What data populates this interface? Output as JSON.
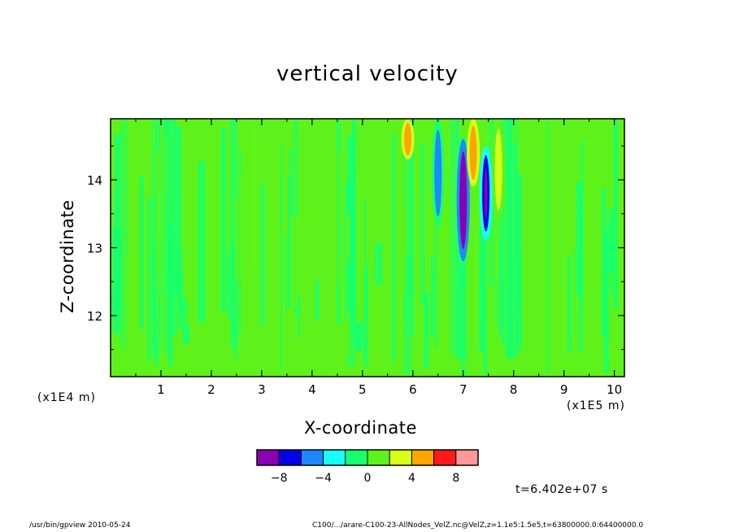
{
  "chart_data": {
    "type": "heatmap",
    "title": "vertical velocity",
    "xlabel": "X-coordinate",
    "ylabel": "Z-coordinate",
    "x_unit": "(x1E5 m)",
    "y_unit": "(x1E4 m)",
    "xlim": [
      0,
      10.2
    ],
    "ylim": [
      11.1,
      14.9
    ],
    "x_ticks": [
      "1",
      "2",
      "3",
      "4",
      "5",
      "6",
      "7",
      "8",
      "9",
      "10"
    ],
    "y_ticks": [
      "12",
      "13",
      "14"
    ],
    "colorbar": {
      "levels": [
        -10,
        -8,
        -6,
        -4,
        -2,
        0,
        2,
        4,
        6,
        8,
        10
      ],
      "tick_labels": [
        "-8",
        "-4",
        "0",
        "4",
        "8"
      ],
      "colors": [
        "#8a00b4",
        "#0000e8",
        "#1f87ff",
        "#18ffff",
        "#18ff6e",
        "#5ff21a",
        "#d8ff18",
        "#ffa500",
        "#ff1a1a",
        "#ff9999"
      ]
    },
    "background_color": "#5ff21a",
    "features": [
      {
        "x": 5.9,
        "z_min": 14.3,
        "z_max": 14.9,
        "value": 4
      },
      {
        "x": 6.5,
        "z_min": 13.3,
        "z_max": 14.9,
        "value": -5
      },
      {
        "x": 7.0,
        "z_min": 12.8,
        "z_max": 14.6,
        "value": -9
      },
      {
        "x": 7.2,
        "z_min": 13.9,
        "z_max": 14.9,
        "value": 5
      },
      {
        "x": 7.45,
        "z_min": 13.1,
        "z_max": 14.5,
        "value": -8
      },
      {
        "x": 7.7,
        "z_min": 13.4,
        "z_max": 14.9,
        "value": 3
      }
    ]
  },
  "timestamp": "t=6.402e+07 s",
  "footer": {
    "left": "/usr/bin/gpview   2010-05-24",
    "right": "C100/.../arare-C100-23-AllNodes_VelZ.nc@VelZ,z=1.1e5:1.5e5,t=63800000.0:64400000.0"
  }
}
